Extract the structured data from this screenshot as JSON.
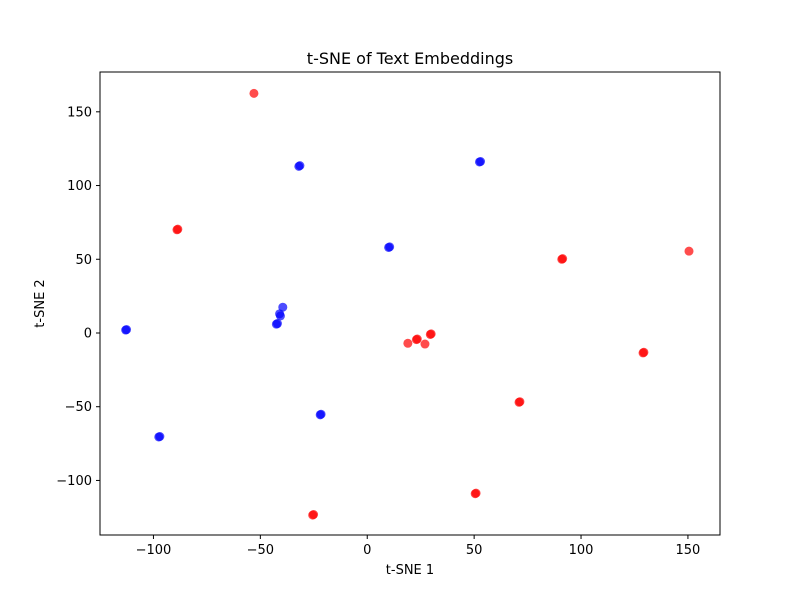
{
  "chart_data": {
    "type": "scatter",
    "title": "t-SNE of Text Embeddings",
    "xlabel": "t-SNE 1",
    "ylabel": "t-SNE 2",
    "xlim": [
      -125,
      165
    ],
    "ylim": [
      -137,
      177
    ],
    "xticks": [
      -100,
      -50,
      0,
      50,
      100,
      150
    ],
    "yticks": [
      -100,
      -50,
      0,
      50,
      100,
      150
    ],
    "grid": false,
    "legend": "none",
    "series": [
      {
        "color": "#0000ff",
        "points": [
          {
            "x": -32,
            "y": 113
          },
          {
            "x": -31.5,
            "y": 113.5
          },
          {
            "x": 52.5,
            "y": 116
          },
          {
            "x": 53,
            "y": 116.3
          },
          {
            "x": 10,
            "y": 58
          },
          {
            "x": 10.5,
            "y": 58.4
          },
          {
            "x": -113,
            "y": 2
          },
          {
            "x": -112.6,
            "y": 2.3
          },
          {
            "x": -39.5,
            "y": 17.5
          },
          {
            "x": -41,
            "y": 13
          },
          {
            "x": -40.6,
            "y": 11.6
          },
          {
            "x": -42.5,
            "y": 6
          },
          {
            "x": -42,
            "y": 6.4
          },
          {
            "x": -97.5,
            "y": -70.5
          },
          {
            "x": -97,
            "y": -70.2
          },
          {
            "x": -22,
            "y": -55.5
          },
          {
            "x": -21.6,
            "y": -55.1
          }
        ]
      },
      {
        "color": "#ff0000",
        "points": [
          {
            "x": -53,
            "y": 162.5
          },
          {
            "x": -89,
            "y": 70
          },
          {
            "x": -88.6,
            "y": 70.4
          },
          {
            "x": 91,
            "y": 50
          },
          {
            "x": 91.4,
            "y": 50.4
          },
          {
            "x": 150.5,
            "y": 55.5
          },
          {
            "x": 19,
            "y": -7
          },
          {
            "x": 23,
            "y": -4.5
          },
          {
            "x": 23.4,
            "y": -4.1
          },
          {
            "x": 27,
            "y": -7.5
          },
          {
            "x": 29.5,
            "y": -1
          },
          {
            "x": 29.9,
            "y": -0.6
          },
          {
            "x": 129,
            "y": -13.5
          },
          {
            "x": 129.4,
            "y": -13.1
          },
          {
            "x": 71,
            "y": -47
          },
          {
            "x": 71.4,
            "y": -46.6
          },
          {
            "x": 50.5,
            "y": -109
          },
          {
            "x": 50.9,
            "y": -108.6
          },
          {
            "x": -25.5,
            "y": -123.5
          },
          {
            "x": -25.1,
            "y": -123.1
          }
        ]
      }
    ]
  }
}
